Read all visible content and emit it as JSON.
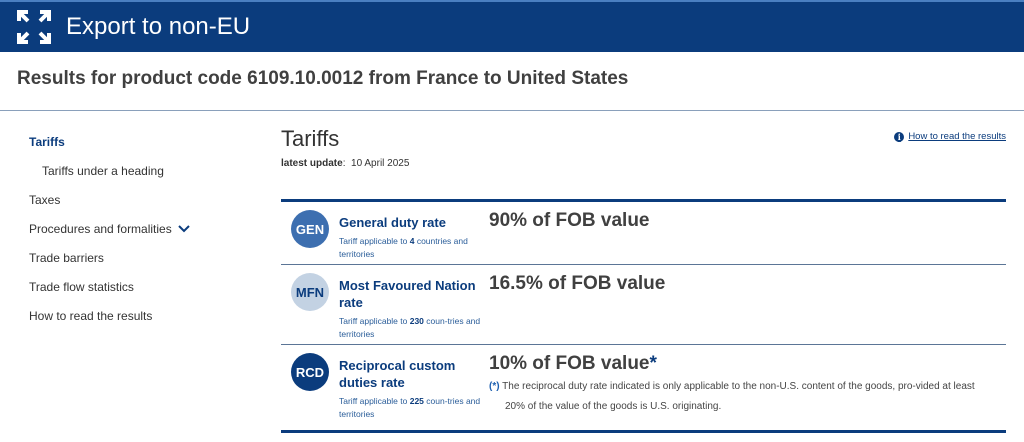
{
  "header": {
    "title": "Export to non-EU",
    "icon": "expand-arrows-icon",
    "color": "#0b3c7d"
  },
  "results_title": "Results for product code 6109.10.0012 from France to United States",
  "sidebar": {
    "items": [
      {
        "label": "Tariffs",
        "active": true
      },
      {
        "label": "Tariffs under a heading",
        "sub": true
      },
      {
        "label": "Taxes"
      },
      {
        "label": "Procedures and formalities",
        "chevron": true
      },
      {
        "label": "Trade barriers"
      },
      {
        "label": "Trade flow statistics"
      },
      {
        "label": "How to read the results"
      }
    ]
  },
  "main": {
    "title": "Tariffs",
    "update_label": "latest update",
    "update_value": "10 April 2025",
    "how_link": "How to read the results"
  },
  "rows": [
    {
      "badge": "GEN",
      "badge_color": "#3d6fb0",
      "title": "General duty rate",
      "sub_pre": "Tariff applicable to ",
      "count": "4",
      "sub_post": " countries and territories",
      "value": "90% of FOB value"
    },
    {
      "badge": "MFN",
      "badge_color": "#c3d2e3",
      "title": "Most Favoured Nation rate",
      "sub_pre": "Tariff applicable to ",
      "count": "230",
      "sub_post": " coun-tries and territories",
      "value": "16.5% of FOB value"
    },
    {
      "badge": "RCD",
      "badge_color": "#0b3c7d",
      "title": "Reciprocal custom duties rate",
      "sub_pre": "Tariff applicable to ",
      "count": "225",
      "sub_post": " coun-tries and territories",
      "value": "10% of FOB value",
      "asterisk": "*",
      "note_marker": "(*)",
      "note": "The reciprocal duty rate indicated is only applicable to the non-U.S. content of the goods, pro-vided at least 20% of the value of the goods is U.S. originating."
    }
  ]
}
